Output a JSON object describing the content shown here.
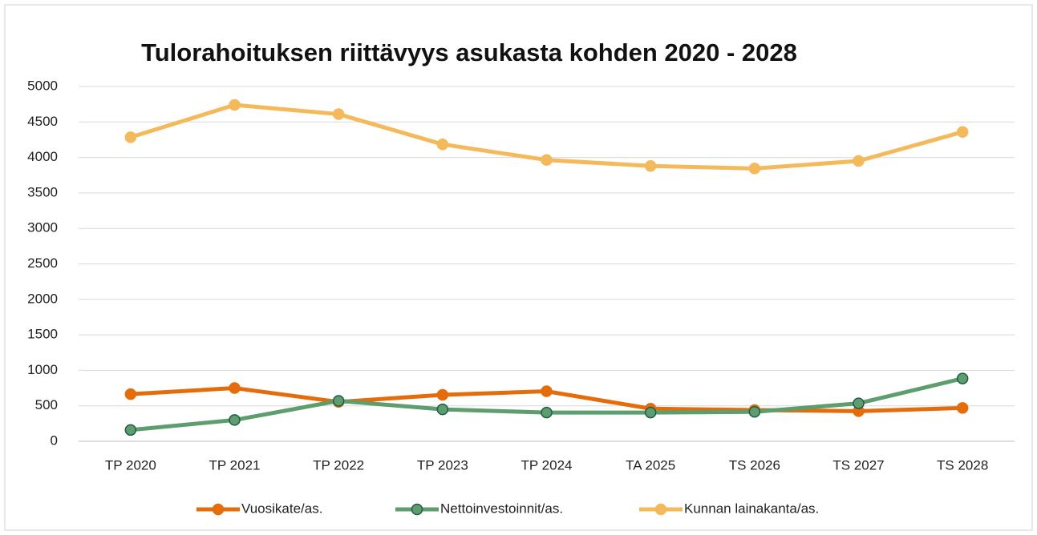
{
  "chart_data": {
    "type": "line",
    "title": "Tulorahoituksen riittävyys asukasta kohden 2020 - 2028",
    "categories": [
      "TP 2020",
      "TP 2021",
      "TP 2022",
      "TP 2023",
      "TP 2024",
      "TA 2025",
      "TS 2026",
      "TS 2027",
      "TS 2028"
    ],
    "series": [
      {
        "name": "Vuosikate/as.",
        "color": "#e46c0a",
        "values": [
          665,
          750,
          555,
          655,
          705,
          460,
          440,
          425,
          470
        ]
      },
      {
        "name": "Nettoinvestoinnit/as.",
        "color": "#5e9e6e",
        "values": [
          160,
          300,
          570,
          450,
          405,
          405,
          415,
          535,
          885
        ]
      },
      {
        "name": "Kunnan lainakanta/as.",
        "color": "#f4b95a",
        "values": [
          4285,
          4740,
          4610,
          4185,
          3965,
          3880,
          3845,
          3950,
          4360
        ]
      }
    ],
    "ylim": [
      0,
      5000
    ],
    "yticks": [
      0,
      500,
      1000,
      1500,
      2000,
      2500,
      3000,
      3500,
      4000,
      4500,
      5000
    ],
    "grid": true,
    "legend": "bottom"
  }
}
